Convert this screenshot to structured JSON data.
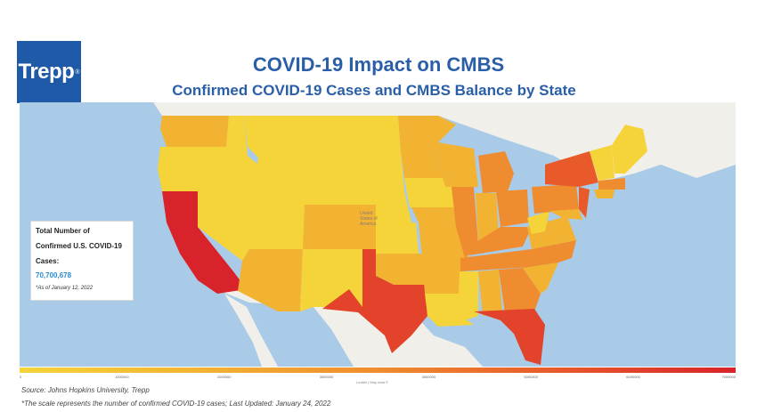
{
  "logo": {
    "text": "Trepp",
    "mark": "®"
  },
  "title": "COVID-19 Impact on CMBS",
  "subtitle": "Confirmed COVID-19 Cases and CMBS Balance by State",
  "legend": {
    "line1": "Total Number of",
    "line2": "Confirmed U.S. COVID-19",
    "line3": "Cases:",
    "value": "70,700,678",
    "as_of": "*As of January 12, 2022"
  },
  "map_label": {
    "line1": "United",
    "line2": "States of",
    "line3": "America"
  },
  "scale": {
    "ticks": [
      "0",
      "1000000",
      "2000000",
      "3000000",
      "4000000",
      "5000000",
      "6000000",
      "7000000"
    ],
    "credit": "Leaflet | Map data ©"
  },
  "colors": {
    "water": "#a9cbe8",
    "land": "#f1efe9",
    "low": "#f5d43a",
    "low_mid": "#f2b333",
    "mid": "#ef8c2f",
    "high": "#e85a2a",
    "max": "#d8232a"
  },
  "footer": {
    "source": "Source: Johns Hopkins University, Trepp",
    "note": "*The scale represents the number of confirmed COVID-19 cases; Last Updated: January 24, 2022"
  }
}
